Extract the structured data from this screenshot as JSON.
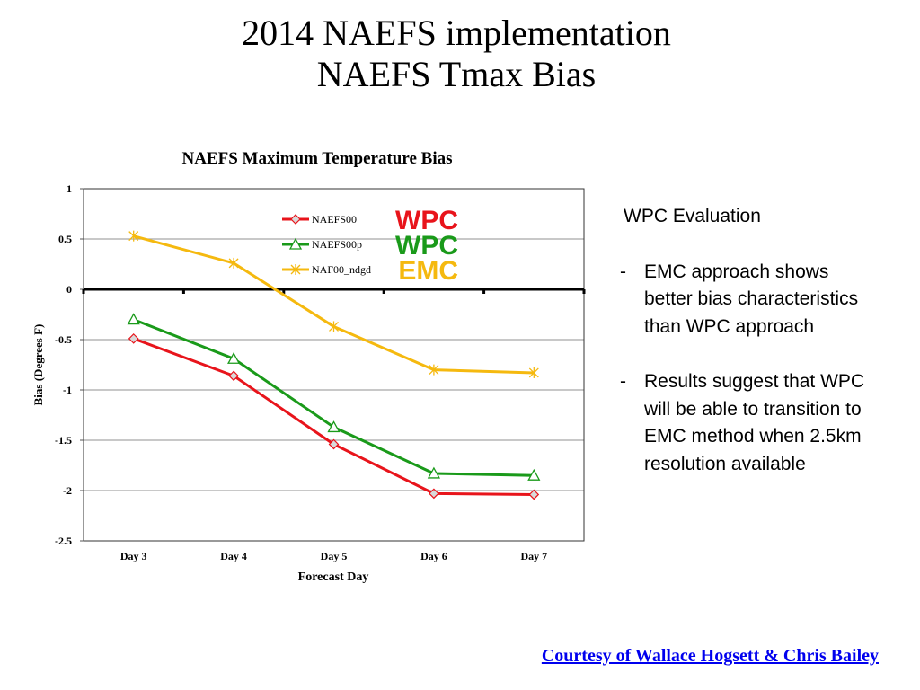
{
  "slide": {
    "title_line1": "2014 NAEFS implementation",
    "title_line2": "NAEFS Tmax Bias"
  },
  "chart_data": {
    "type": "line",
    "title": "NAEFS Maximum Temperature Bias",
    "xlabel": "Forecast Day",
    "ylabel": "Bias (Degrees F)",
    "categories": [
      "Day 3",
      "Day 4",
      "Day 5",
      "Day 6",
      "Day 7"
    ],
    "ylim": [
      -2.5,
      1
    ],
    "yticks": [
      1,
      0.5,
      0,
      -0.5,
      -1,
      -1.5,
      -2,
      -2.5
    ],
    "ytick_labels": [
      "1",
      "0.5",
      "0",
      "-0.5",
      "-1",
      "-1.5",
      "-2",
      "-2.5"
    ],
    "grid": true,
    "legend_position": "top-center",
    "series": [
      {
        "name": "NAEFS00",
        "color": "#e8141b",
        "marker": "diamond",
        "values": [
          -0.49,
          -0.86,
          -1.54,
          -2.03,
          -2.04
        ],
        "tag": "WPC"
      },
      {
        "name": "NAEFS00p",
        "color": "#1a9a1a",
        "marker": "triangle",
        "values": [
          -0.3,
          -0.69,
          -1.37,
          -1.83,
          -1.85
        ],
        "tag": "WPC"
      },
      {
        "name": "NAF00_ndgd",
        "color": "#f5b90f",
        "marker": "asterisk",
        "values": [
          0.53,
          0.26,
          -0.37,
          -0.8,
          -0.83
        ],
        "tag": "EMC"
      }
    ]
  },
  "tags": {
    "colors": {
      "WPC_red": "#e8141b",
      "WPC_green": "#1a9a1a",
      "EMC": "#f5b90f"
    }
  },
  "side_panel": {
    "heading": "WPC Evaluation",
    "bullets": [
      {
        "dash": "-",
        "text": "EMC approach shows better bias characteristics than WPC approach"
      },
      {
        "dash": "-",
        "text": "Results suggest that WPC will be able to transition to EMC method when 2.5km resolution available"
      }
    ]
  },
  "credit": "Courtesy of Wallace Hogsett & Chris Bailey"
}
